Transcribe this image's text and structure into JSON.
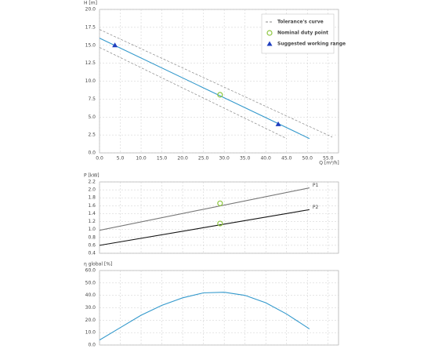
{
  "chart_data": [
    {
      "type": "line",
      "y_label": "H [m]",
      "x_label": "Q [m³/h]",
      "legend": "top-right",
      "grid": true,
      "xlim": [
        0,
        57.5
      ],
      "ylim": [
        0,
        20
      ],
      "xticks": [
        {
          "value": 0,
          "label": "0.0"
        },
        {
          "value": 5,
          "label": "5.0"
        },
        {
          "value": 10,
          "label": "10.0"
        },
        {
          "value": 15,
          "label": "15.0"
        },
        {
          "value": 20,
          "label": "20.0"
        },
        {
          "value": 25,
          "label": "25.0"
        },
        {
          "value": 30,
          "label": "30.0"
        },
        {
          "value": 35,
          "label": "35.0"
        },
        {
          "value": 40,
          "label": "40.0"
        },
        {
          "value": 45,
          "label": "45.0"
        },
        {
          "value": 50,
          "label": "50.0"
        },
        {
          "value": 55,
          "label": "55.0"
        }
      ],
      "yticks": [
        {
          "value": 0,
          "label": "0.0"
        },
        2.5,
        {
          "value": 5,
          "label": "5.0"
        },
        7.5,
        {
          "value": 10,
          "label": "10.0"
        },
        12.5,
        {
          "value": 15,
          "label": "15.0"
        },
        17.5,
        {
          "value": 20,
          "label": "20.0"
        }
      ],
      "series": [
        {
          "color": "#3399cc",
          "x": [
            0,
            50.5
          ],
          "values": [
            16,
            2
          ]
        },
        {
          "name": "Tolerance's curve",
          "color": "#888888",
          "dash": true,
          "x": [
            0,
            56
          ],
          "values": [
            17.2,
            2.2
          ]
        },
        {
          "color": "#888888",
          "dash": true,
          "x": [
            0,
            45
          ],
          "values": [
            14.7,
            2
          ]
        },
        {
          "name": "Nominal duty point",
          "color": "#8dc63f",
          "marker": "circle",
          "x": [
            29
          ],
          "values": [
            8.1
          ]
        },
        {
          "name": "Suggested working range",
          "color": "#1f3fbf",
          "marker": "triangle",
          "x": [
            3.7,
            43
          ],
          "values": [
            15,
            4
          ]
        }
      ]
    },
    {
      "type": "line",
      "y_label": "P [kW]",
      "grid": true,
      "xlim": [
        0,
        57.5
      ],
      "ylim": [
        0.4,
        2.2
      ],
      "yticks": [
        0.4,
        0.6,
        0.8,
        {
          "value": 1,
          "label": "1.0"
        },
        1.2,
        1.4,
        1.6,
        1.8,
        {
          "value": 2,
          "label": "2.0"
        },
        2.2
      ],
      "series": [
        {
          "name": "P1",
          "color": "#777777",
          "x": [
            0,
            50.5
          ],
          "values": [
            0.98,
            2.05
          ]
        },
        {
          "name": "P2",
          "color": "#111111",
          "x": [
            0,
            50.5
          ],
          "values": [
            0.6,
            1.5
          ]
        },
        {
          "color": "#8dc63f",
          "marker": "circle",
          "x": [
            29,
            29
          ],
          "values": [
            1.66,
            1.15
          ]
        }
      ]
    },
    {
      "type": "line",
      "y_label": "η global [%]",
      "grid": true,
      "xlim": [
        0,
        57.5
      ],
      "ylim": [
        0,
        60
      ],
      "yticks": [
        {
          "value": 0,
          "label": "0.0"
        },
        {
          "value": 10,
          "label": "10.0"
        },
        {
          "value": 20,
          "label": "20.0"
        },
        {
          "value": 30,
          "label": "30.0"
        },
        {
          "value": 40,
          "label": "40.0"
        },
        {
          "value": 50,
          "label": "50.0"
        },
        {
          "value": 60,
          "label": "60.0"
        }
      ],
      "series": [
        {
          "color": "#3399cc",
          "x": [
            0,
            5,
            10,
            15,
            20,
            25,
            30,
            35,
            40,
            45,
            50.5
          ],
          "values": [
            4,
            14,
            24,
            32,
            38,
            42,
            42.5,
            40,
            34,
            25,
            13
          ]
        }
      ]
    }
  ]
}
